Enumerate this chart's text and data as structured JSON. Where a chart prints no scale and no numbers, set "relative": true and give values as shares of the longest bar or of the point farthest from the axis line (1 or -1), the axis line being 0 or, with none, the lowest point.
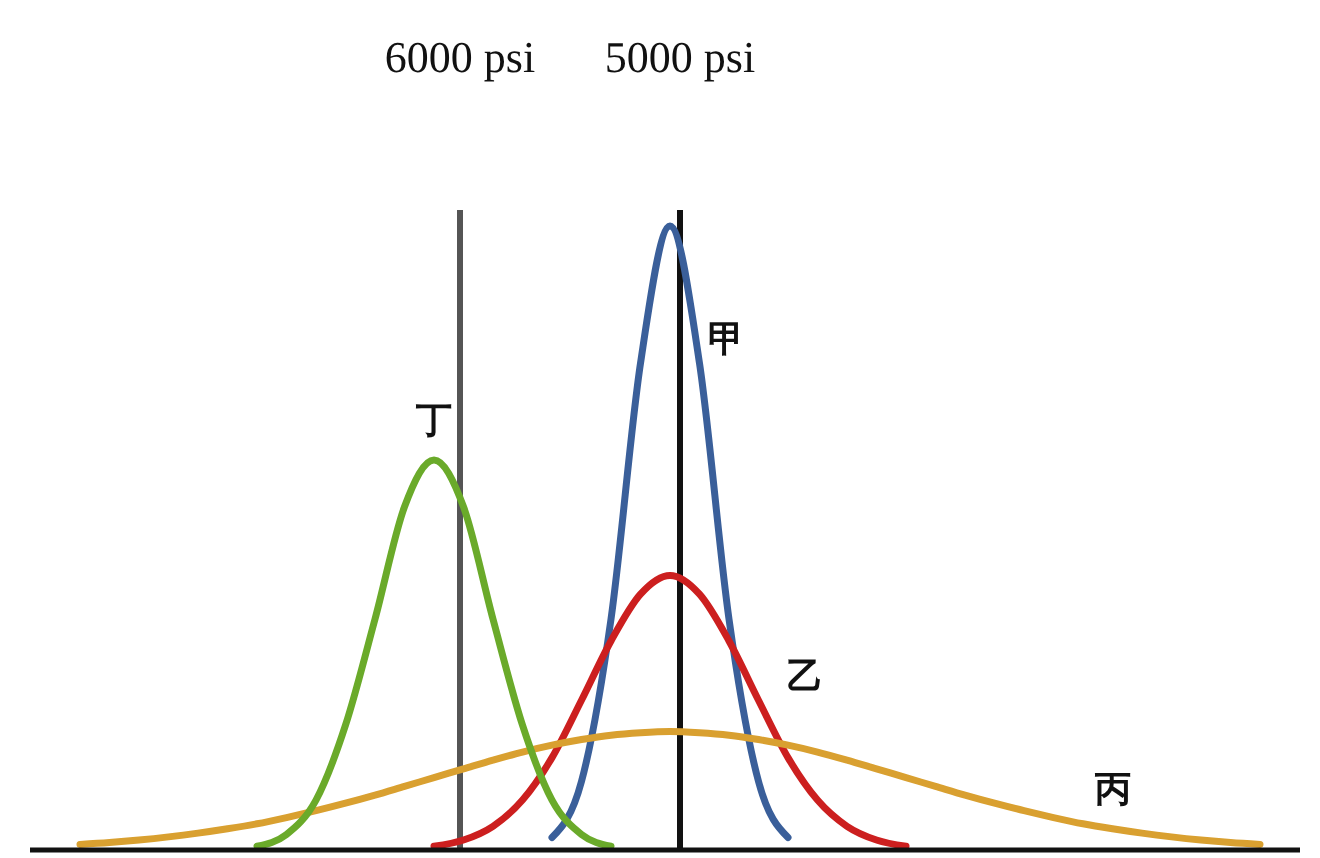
{
  "chart_data": {
    "type": "line",
    "relative": true,
    "categories": [
      null,
      null,
      null,
      null,
      null,
      null,
      null,
      null,
      null,
      null,
      null,
      null,
      null,
      null,
      null,
      null,
      null,
      null,
      null,
      null,
      null,
      null,
      null,
      null,
      null,
      null,
      null,
      null,
      null,
      null,
      null,
      null,
      null,
      null,
      null,
      null,
      null,
      null,
      null,
      null,
      null
    ],
    "series": [
      {
        "name": "甲",
        "color": "#3a5f9a",
        "values": [
          null,
          null,
          null,
          null,
          null,
          null,
          null,
          null,
          null,
          null,
          null,
          null,
          null,
          null,
          null,
          null,
          0.02,
          0.11,
          0.37,
          0.78,
          1,
          0.78,
          0.37,
          0.11,
          0.02,
          null,
          null,
          null,
          null,
          null,
          null,
          null,
          null,
          null,
          null,
          null,
          null,
          null,
          null,
          null,
          null
        ]
      },
      {
        "name": "乙",
        "color": "#cc1f1f",
        "values": [
          null,
          null,
          null,
          null,
          null,
          null,
          null,
          null,
          null,
          null,
          null,
          null,
          0.006,
          0.016,
          0.038,
          0.08,
          0.148,
          0.24,
          0.335,
          0.41,
          0.44,
          0.41,
          0.335,
          0.24,
          0.148,
          0.08,
          0.038,
          0.016,
          0.006,
          null,
          null,
          null,
          null,
          null,
          null,
          null,
          null,
          null,
          null,
          null,
          null
        ]
      },
      {
        "name": "丙",
        "color": "#d9a030",
        "values": [
          0.009,
          0.012,
          0.016,
          0.021,
          0.027,
          0.034,
          0.042,
          0.052,
          0.063,
          0.075,
          0.088,
          0.102,
          0.116,
          0.13,
          0.144,
          0.157,
          0.168,
          0.177,
          0.184,
          0.188,
          0.19,
          0.188,
          0.184,
          0.177,
          0.168,
          0.157,
          0.144,
          0.13,
          0.116,
          0.102,
          0.088,
          0.075,
          0.063,
          0.052,
          0.042,
          0.034,
          0.027,
          0.021,
          0.016,
          0.012,
          0.009
        ]
      },
      {
        "name": "丁",
        "color": "#6aaa2a",
        "values": [
          null,
          null,
          null,
          null,
          null,
          null,
          0.006,
          0.025,
          0.08,
          0.2,
          0.37,
          0.55,
          0.625,
          0.55,
          0.37,
          0.2,
          0.08,
          0.025,
          0.006,
          null,
          null,
          null,
          null,
          null,
          null,
          null,
          null,
          null,
          null,
          null,
          null,
          null,
          null,
          null,
          null,
          null,
          null,
          null,
          null,
          null,
          null
        ]
      }
    ],
    "annotations": [
      "6000 psi",
      "5000 psi"
    ]
  }
}
